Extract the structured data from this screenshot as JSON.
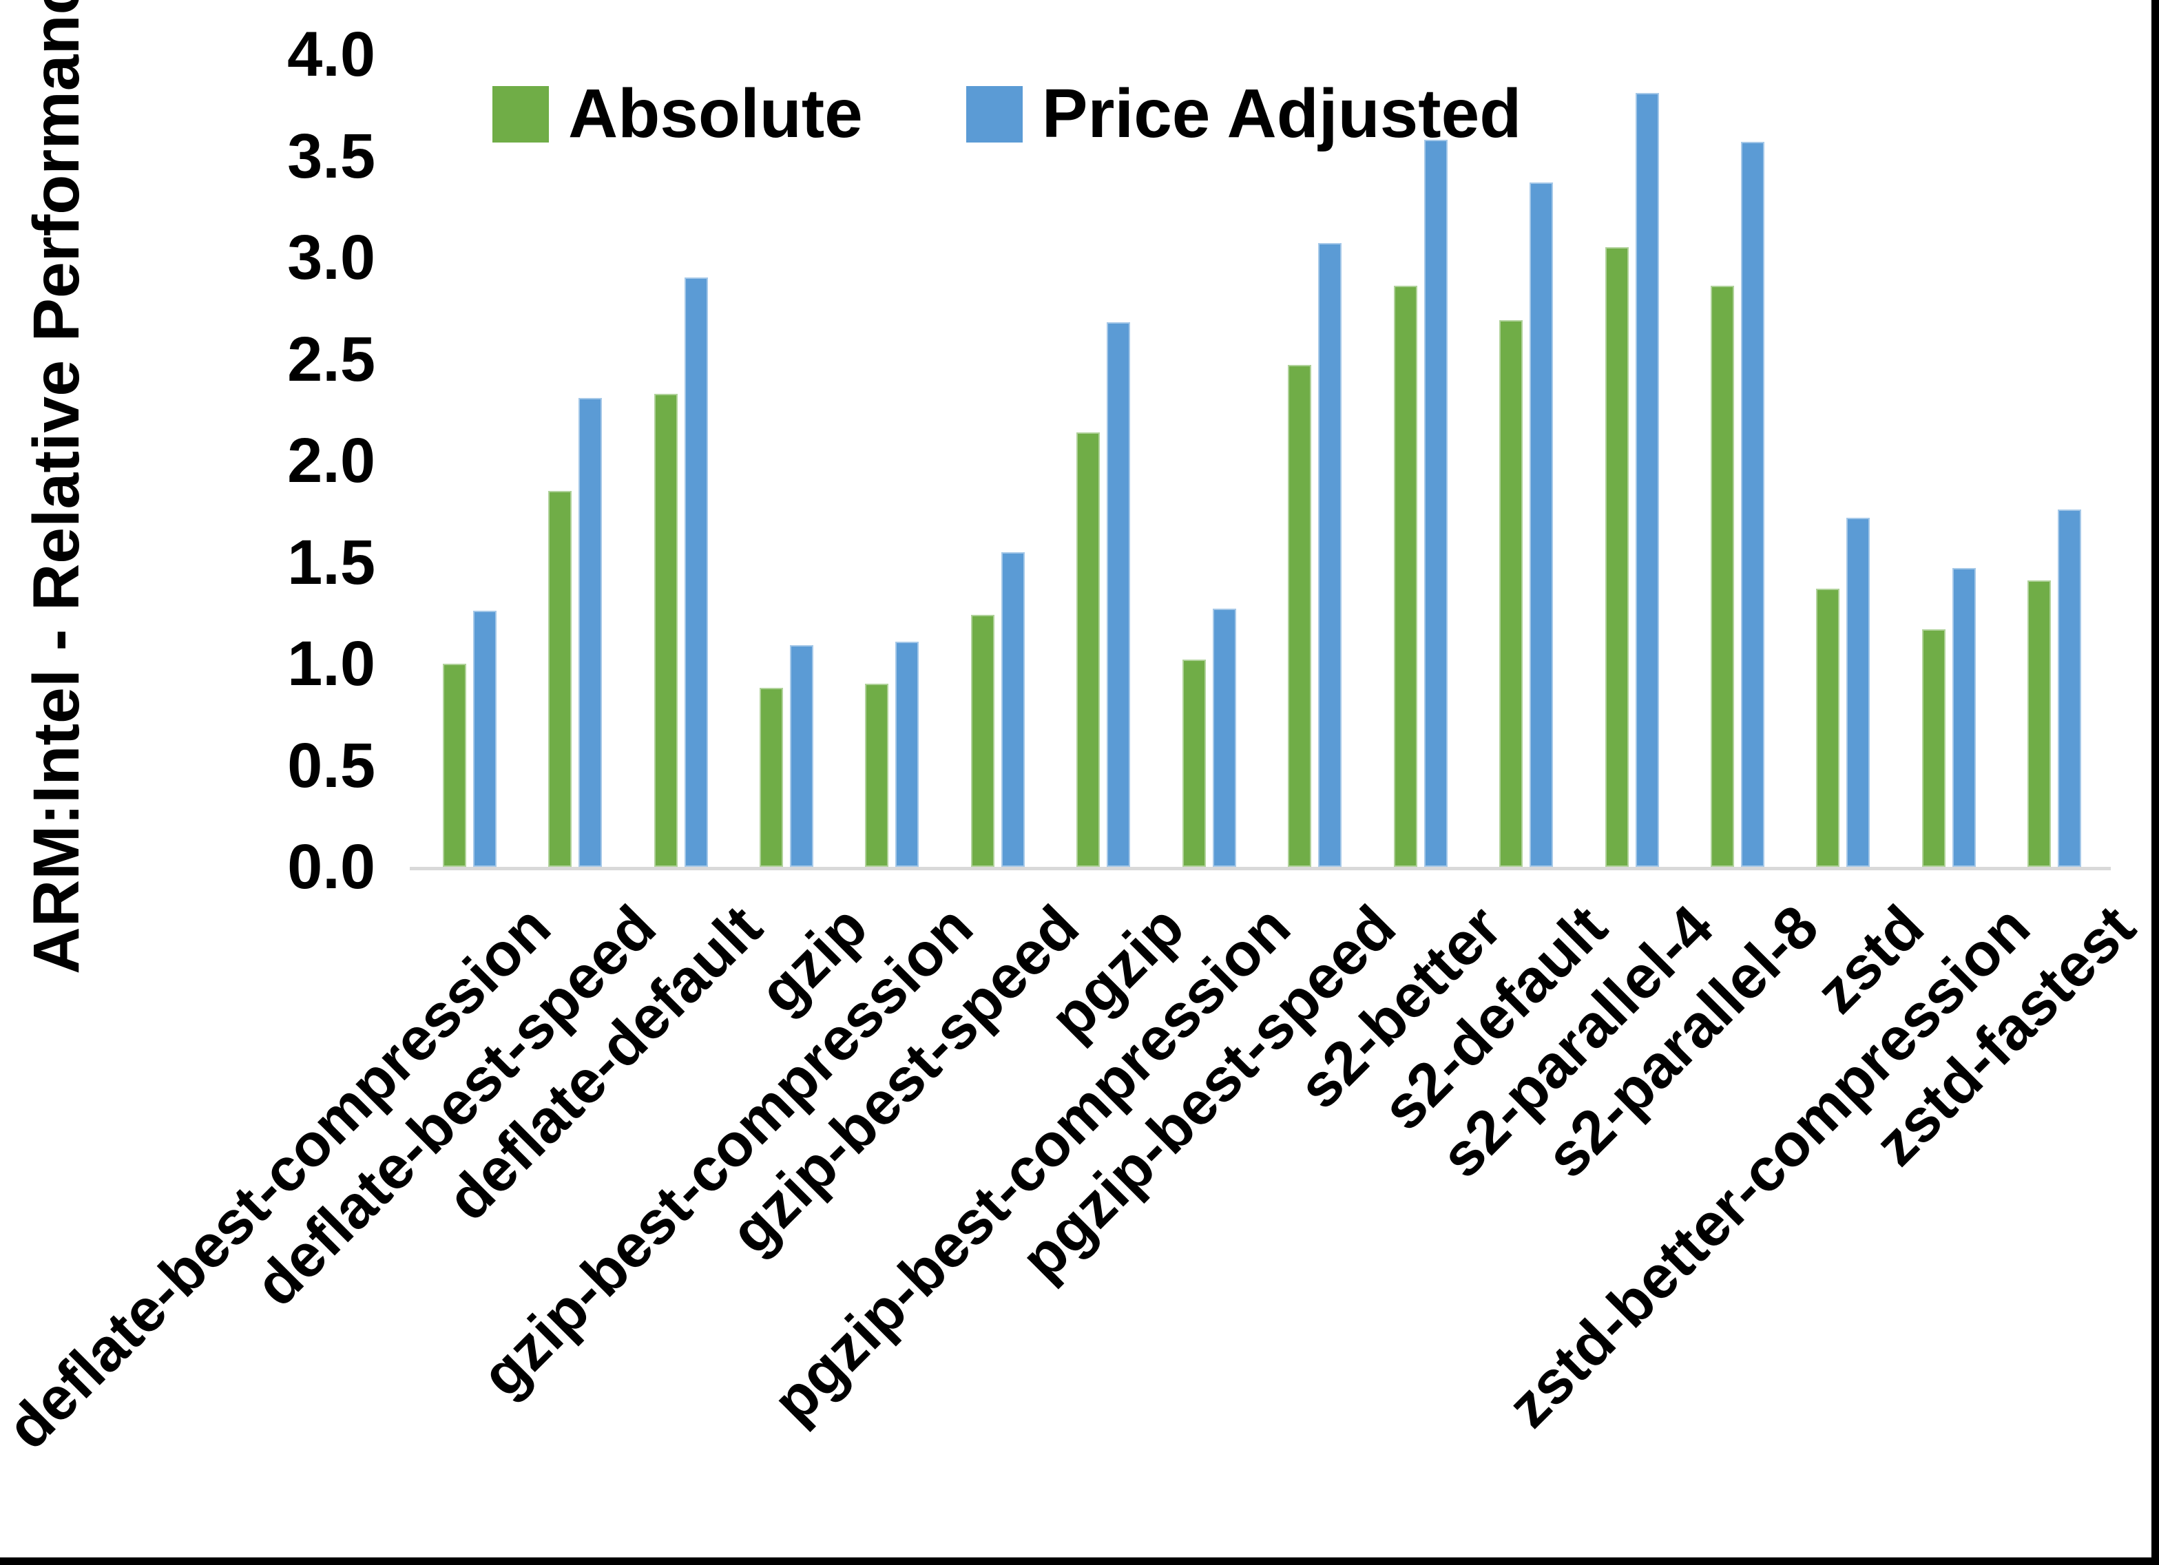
{
  "figure": {
    "ylabel": "ARM:Intel - Relative Performance",
    "axis_line_color": "#d9d9d9",
    "frame_border_color": "#000000",
    "legend": {
      "position": "top-center",
      "items": [
        {
          "label": "Absolute",
          "color": "#70AD47"
        },
        {
          "label": "Price Adjusted",
          "color": "#5B9BD5"
        }
      ]
    }
  },
  "chart_data": {
    "type": "bar",
    "title": "",
    "xlabel": "",
    "ylabel": "ARM:Intel - Relative Performance",
    "ylim": [
      0.0,
      4.0
    ],
    "ytick_step": 0.5,
    "yticks": [
      "0.0",
      "0.5",
      "1.0",
      "1.5",
      "2.0",
      "2.5",
      "3.0",
      "3.5",
      "4.0"
    ],
    "grid": false,
    "legend_position": "top-center",
    "categories": [
      "deflate-best-compression",
      "deflate-best-speed",
      "deflate-default",
      "gzip",
      "gzip-best-compression",
      "gzip-best-speed",
      "pgzip",
      "pgzip-best-compression",
      "pgzip-best-speed",
      "s2-better",
      "s2-default",
      "s2-parallel-4",
      "s2-parallel-8",
      "zstd",
      "zstd-better-compression",
      "zstd-fastest"
    ],
    "series": [
      {
        "name": "Absolute",
        "color": "#70AD47",
        "values": [
          1.0,
          1.85,
          2.33,
          0.88,
          0.9,
          1.24,
          2.14,
          1.02,
          2.47,
          2.86,
          2.69,
          3.05,
          2.86,
          1.37,
          1.17,
          1.41
        ]
      },
      {
        "name": "Price Adjusted",
        "color": "#5B9BD5",
        "values": [
          1.26,
          2.31,
          2.9,
          1.09,
          1.11,
          1.55,
          2.68,
          1.27,
          3.07,
          3.58,
          3.37,
          3.81,
          3.57,
          1.72,
          1.47,
          1.76
        ]
      }
    ]
  }
}
